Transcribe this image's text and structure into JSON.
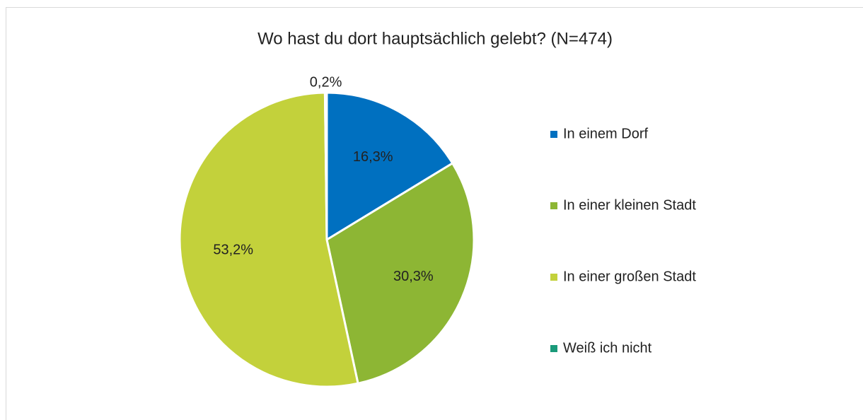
{
  "chart_data": {
    "type": "pie",
    "title": "Wo hast du dort hauptsächlich gelebt? (N=474)",
    "categories": [
      "In einem Dorf",
      "In einer kleinen Stadt",
      "In einer großen Stadt",
      "Weiß ich nicht"
    ],
    "values": [
      16.3,
      30.3,
      53.2,
      0.2
    ],
    "value_labels": [
      "16,3%",
      "30,3%",
      "53,2%",
      "0,2%"
    ],
    "colors": [
      "#0070c0",
      "#8db634",
      "#c3d13b",
      "#1a9a7a"
    ],
    "legend": "right"
  }
}
